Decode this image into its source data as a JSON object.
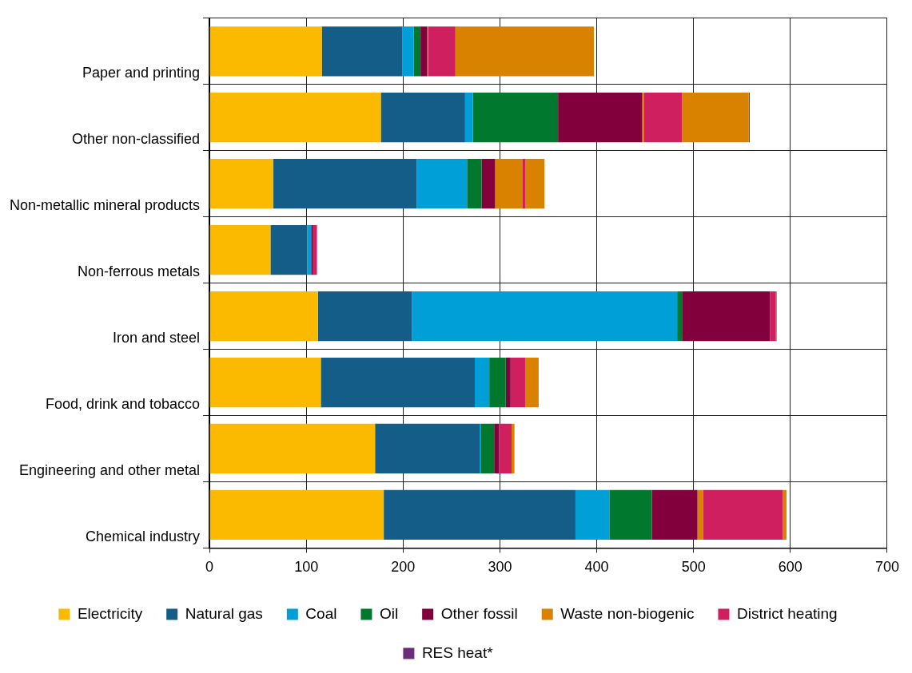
{
  "chart_data": {
    "type": "bar",
    "orientation": "horizontal",
    "stacked": true,
    "categories": [
      "Paper and printing",
      "Other non-classified",
      "Non-metallic mineral products",
      "Non-ferrous metals",
      "Iron and steel",
      "Food, drink and tobacco",
      "Engineering and other metal",
      "Chemical industry"
    ],
    "series": [
      {
        "name": "Electricity",
        "color": "#fbb900",
        "values": [
          116,
          177,
          66,
          63,
          112,
          115,
          171,
          180
        ]
      },
      {
        "name": "Natural gas",
        "color": "#135d88",
        "values": [
          83,
          87,
          148,
          38,
          97,
          159,
          108,
          198
        ]
      },
      {
        "name": "Coal",
        "color": "#009fd8",
        "values": [
          12,
          8,
          52,
          4,
          274,
          15,
          1,
          35
        ]
      },
      {
        "name": "Oil",
        "color": "#00782e",
        "values": [
          7,
          88,
          15,
          0,
          5,
          17,
          14,
          44
        ]
      },
      {
        "name": "Other fossil",
        "color": "#82003c",
        "values": [
          7,
          87,
          14,
          2,
          91,
          5,
          5,
          47
        ]
      },
      {
        "name": "Waste non-biogenic",
        "color": "#d98200",
        "values": [
          1,
          2,
          28,
          0,
          0,
          0,
          0,
          6
        ]
      },
      {
        "name": "District heating",
        "color": "#d01f5f",
        "values": [
          28,
          39,
          3,
          4,
          6,
          15,
          13,
          82
        ]
      },
      {
        "color": "#d98200",
        "values": [
          143,
          69,
          20,
          0,
          1,
          14,
          3,
          4
        ]
      },
      {
        "name": "RES heat*",
        "color": "#6b2c7a",
        "values": [
          0,
          1,
          0,
          0,
          0,
          0,
          0,
          0
        ]
      }
    ],
    "xlim": [
      0,
      700
    ],
    "xticks": [
      0,
      100,
      200,
      300,
      400,
      500,
      600,
      700
    ],
    "grid": true,
    "legend": "bottom"
  }
}
